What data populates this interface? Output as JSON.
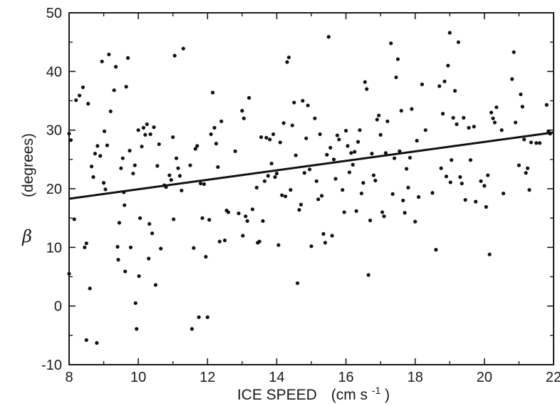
{
  "chart_data": {
    "type": "scatter",
    "title": "",
    "xlabel": "ICE SPEED",
    "xunit_prefix": "(cm s",
    "xunit_exp": "-1",
    "xunit_suffix": ")",
    "ylabel_symbol": "β",
    "ylabel_unit": "(degrees)",
    "xlim": [
      8,
      22
    ],
    "ylim": [
      -10,
      50
    ],
    "xticks": [
      "8",
      "10",
      "12",
      "14",
      "16",
      "18",
      "20",
      "22"
    ],
    "yticks": [
      "-10",
      "0",
      "10",
      "20",
      "30",
      "40",
      "50"
    ],
    "grid": false,
    "trend_line": {
      "x": [
        8,
        22
      ],
      "y": [
        18.3,
        29.6
      ]
    },
    "points": [
      [
        8.0,
        29.4
      ],
      [
        8.05,
        28.3
      ],
      [
        8.0,
        5.5
      ],
      [
        8.15,
        14.8
      ],
      [
        8.2,
        35.1
      ],
      [
        8.3,
        35.9
      ],
      [
        8.4,
        37.3
      ],
      [
        8.5,
        -5.8
      ],
      [
        8.45,
        10.0
      ],
      [
        8.5,
        10.7
      ],
      [
        8.55,
        34.5
      ],
      [
        8.6,
        3.0
      ],
      [
        8.65,
        23.8
      ],
      [
        8.7,
        22.0
      ],
      [
        8.75,
        26.0
      ],
      [
        8.8,
        -6.3
      ],
      [
        8.82,
        27.3
      ],
      [
        8.9,
        25.6
      ],
      [
        8.95,
        41.7
      ],
      [
        9.0,
        21.0
      ],
      [
        9.02,
        29.8
      ],
      [
        9.05,
        19.9
      ],
      [
        9.1,
        27.4
      ],
      [
        9.15,
        42.9
      ],
      [
        9.2,
        33.2
      ],
      [
        9.3,
        36.8
      ],
      [
        9.35,
        40.8
      ],
      [
        9.4,
        10.1
      ],
      [
        9.42,
        7.9
      ],
      [
        9.45,
        14.2
      ],
      [
        9.5,
        23.5
      ],
      [
        9.55,
        25.2
      ],
      [
        9.58,
        19.4
      ],
      [
        9.6,
        17.2
      ],
      [
        9.62,
        5.9
      ],
      [
        9.65,
        37.4
      ],
      [
        9.7,
        42.3
      ],
      [
        9.75,
        26.5
      ],
      [
        9.78,
        10.0
      ],
      [
        9.85,
        22.6
      ],
      [
        9.9,
        24.0
      ],
      [
        9.92,
        0.5
      ],
      [
        9.95,
        -3.9
      ],
      [
        10.0,
        30.0
      ],
      [
        10.02,
        5.1
      ],
      [
        10.05,
        15.0
      ],
      [
        10.1,
        27.2
      ],
      [
        10.15,
        30.4
      ],
      [
        10.2,
        29.2
      ],
      [
        10.25,
        31.0
      ],
      [
        10.3,
        8.1
      ],
      [
        10.32,
        14.0
      ],
      [
        10.35,
        29.3
      ],
      [
        10.4,
        12.4
      ],
      [
        10.45,
        30.5
      ],
      [
        10.5,
        3.6
      ],
      [
        10.55,
        23.9
      ],
      [
        10.6,
        27.6
      ],
      [
        10.65,
        9.8
      ],
      [
        10.75,
        20.6
      ],
      [
        10.8,
        20.3
      ],
      [
        10.9,
        22.3
      ],
      [
        10.95,
        21.5
      ],
      [
        11.0,
        28.8
      ],
      [
        11.02,
        14.8
      ],
      [
        11.05,
        42.7
      ],
      [
        11.1,
        25.2
      ],
      [
        11.15,
        23.5
      ],
      [
        11.2,
        22.2
      ],
      [
        11.25,
        19.7
      ],
      [
        11.3,
        43.9
      ],
      [
        11.5,
        24.0
      ],
      [
        11.55,
        -3.9
      ],
      [
        11.6,
        9.9
      ],
      [
        11.65,
        26.8
      ],
      [
        11.7,
        27.3
      ],
      [
        11.75,
        -1.9
      ],
      [
        11.8,
        20.9
      ],
      [
        11.85,
        15.0
      ],
      [
        11.9,
        20.8
      ],
      [
        11.95,
        8.4
      ],
      [
        12.0,
        -1.9
      ],
      [
        12.05,
        14.7
      ],
      [
        12.1,
        29.3
      ],
      [
        12.15,
        36.4
      ],
      [
        12.2,
        30.4
      ],
      [
        12.25,
        27.7
      ],
      [
        12.3,
        23.7
      ],
      [
        12.35,
        11.0
      ],
      [
        12.4,
        31.5
      ],
      [
        12.5,
        11.2
      ],
      [
        12.55,
        16.3
      ],
      [
        12.6,
        16.0
      ],
      [
        12.8,
        26.4
      ],
      [
        12.9,
        15.8
      ],
      [
        13.0,
        33.3
      ],
      [
        13.02,
        12.0
      ],
      [
        13.05,
        32.0
      ],
      [
        13.1,
        15.3
      ],
      [
        13.15,
        14.5
      ],
      [
        13.2,
        35.5
      ],
      [
        13.3,
        16.5
      ],
      [
        13.42,
        20.2
      ],
      [
        13.45,
        10.8
      ],
      [
        13.5,
        11.0
      ],
      [
        13.55,
        28.8
      ],
      [
        13.6,
        14.5
      ],
      [
        13.65,
        21.3
      ],
      [
        13.7,
        28.7
      ],
      [
        13.75,
        22.2
      ],
      [
        13.8,
        28.4
      ],
      [
        13.85,
        24.3
      ],
      [
        13.9,
        29.3
      ],
      [
        13.95,
        22.0
      ],
      [
        14.0,
        22.6
      ],
      [
        14.05,
        10.4
      ],
      [
        14.1,
        27.9
      ],
      [
        14.15,
        18.9
      ],
      [
        14.2,
        31.2
      ],
      [
        14.25,
        18.7
      ],
      [
        14.3,
        41.6
      ],
      [
        14.35,
        42.4
      ],
      [
        14.4,
        19.8
      ],
      [
        14.45,
        30.8
      ],
      [
        14.5,
        34.7
      ],
      [
        14.55,
        25.7
      ],
      [
        14.6,
        3.9
      ],
      [
        14.65,
        16.4
      ],
      [
        14.7,
        17.3
      ],
      [
        14.75,
        35.0
      ],
      [
        14.8,
        22.7
      ],
      [
        14.85,
        28.6
      ],
      [
        14.9,
        34.2
      ],
      [
        14.95,
        23.3
      ],
      [
        15.0,
        10.2
      ],
      [
        15.1,
        32.0
      ],
      [
        15.15,
        21.3
      ],
      [
        15.2,
        18.2
      ],
      [
        15.25,
        29.3
      ],
      [
        15.3,
        18.8
      ],
      [
        15.35,
        12.3
      ],
      [
        15.4,
        10.8
      ],
      [
        15.45,
        25.8
      ],
      [
        15.5,
        45.9
      ],
      [
        15.55,
        27.0
      ],
      [
        15.6,
        12.0
      ],
      [
        15.65,
        25.0
      ],
      [
        15.7,
        21.7
      ],
      [
        15.75,
        29.1
      ],
      [
        15.8,
        28.4
      ],
      [
        15.9,
        19.8
      ],
      [
        15.95,
        16.0
      ],
      [
        16.0,
        29.9
      ],
      [
        16.05,
        27.3
      ],
      [
        16.1,
        22.8
      ],
      [
        16.15,
        26.1
      ],
      [
        16.2,
        24.1
      ],
      [
        16.25,
        26.3
      ],
      [
        16.3,
        16.2
      ],
      [
        16.35,
        28.0
      ],
      [
        16.4,
        30.0
      ],
      [
        16.45,
        19.2
      ],
      [
        16.5,
        21.0
      ],
      [
        16.55,
        38.2
      ],
      [
        16.6,
        37.0
      ],
      [
        16.65,
        5.3
      ],
      [
        16.7,
        14.6
      ],
      [
        16.75,
        26.0
      ],
      [
        16.8,
        22.3
      ],
      [
        16.85,
        21.4
      ],
      [
        16.9,
        31.8
      ],
      [
        16.95,
        32.5
      ],
      [
        17.0,
        29.2
      ],
      [
        17.05,
        16.0
      ],
      [
        17.1,
        15.3
      ],
      [
        17.15,
        26.1
      ],
      [
        17.2,
        31.5
      ],
      [
        17.3,
        44.8
      ],
      [
        17.35,
        19.1
      ],
      [
        17.4,
        25.2
      ],
      [
        17.45,
        39.0
      ],
      [
        17.5,
        42.1
      ],
      [
        17.55,
        26.4
      ],
      [
        17.6,
        33.3
      ],
      [
        17.65,
        18.0
      ],
      [
        17.7,
        15.9
      ],
      [
        17.75,
        23.4
      ],
      [
        17.8,
        20.2
      ],
      [
        17.85,
        25.3
      ],
      [
        17.9,
        33.6
      ],
      [
        18.0,
        14.4
      ],
      [
        18.05,
        28.2
      ],
      [
        18.1,
        18.6
      ],
      [
        18.2,
        37.8
      ],
      [
        18.3,
        30.0
      ],
      [
        18.5,
        19.3
      ],
      [
        18.6,
        9.6
      ],
      [
        18.7,
        37.5
      ],
      [
        18.75,
        23.5
      ],
      [
        18.8,
        32.8
      ],
      [
        18.85,
        38.3
      ],
      [
        18.9,
        22.1
      ],
      [
        18.95,
        41.0
      ],
      [
        19.0,
        46.6
      ],
      [
        19.02,
        21.1
      ],
      [
        19.05,
        24.9
      ],
      [
        19.1,
        32.1
      ],
      [
        19.15,
        36.7
      ],
      [
        19.2,
        31.0
      ],
      [
        19.25,
        45.0
      ],
      [
        19.3,
        22.0
      ],
      [
        19.35,
        20.9
      ],
      [
        19.4,
        32.1
      ],
      [
        19.45,
        18.1
      ],
      [
        19.55,
        30.4
      ],
      [
        19.6,
        24.9
      ],
      [
        19.7,
        30.6
      ],
      [
        19.75,
        17.8
      ],
      [
        19.9,
        21.3
      ],
      [
        20.0,
        20.5
      ],
      [
        20.05,
        16.9
      ],
      [
        20.1,
        22.3
      ],
      [
        20.15,
        8.8
      ],
      [
        20.2,
        33.0
      ],
      [
        20.25,
        32.0
      ],
      [
        20.3,
        31.3
      ],
      [
        20.35,
        33.9
      ],
      [
        20.5,
        30.0
      ],
      [
        20.55,
        19.2
      ],
      [
        20.8,
        38.7
      ],
      [
        20.85,
        43.3
      ],
      [
        20.9,
        31.3
      ],
      [
        21.0,
        24.0
      ],
      [
        21.05,
        36.1
      ],
      [
        21.1,
        34.0
      ],
      [
        21.15,
        28.4
      ],
      [
        21.2,
        22.7
      ],
      [
        21.25,
        23.5
      ],
      [
        21.3,
        19.8
      ],
      [
        21.35,
        27.9
      ],
      [
        21.5,
        27.8
      ],
      [
        21.6,
        27.8
      ],
      [
        21.8,
        34.3
      ],
      [
        21.85,
        29.8
      ],
      [
        21.9,
        29.4
      ]
    ]
  }
}
